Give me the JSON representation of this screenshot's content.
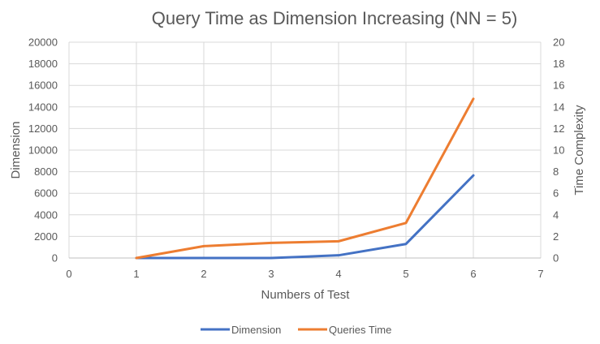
{
  "chart_data": {
    "type": "line",
    "title": "Query Time as Dimension Increasing (NN = 5)",
    "xlabel": "Numbers of Test",
    "ylabel_left": "Dimension",
    "ylabel_right": "Time Complexity",
    "xlim": [
      0,
      7
    ],
    "ylim_left": [
      0,
      20000
    ],
    "ylim_right": [
      0,
      20
    ],
    "x_ticks": [
      "0",
      "1",
      "2",
      "3",
      "4",
      "5",
      "6",
      "7"
    ],
    "y_left_ticks": [
      "0",
      "2000",
      "4000",
      "6000",
      "8000",
      "10000",
      "12000",
      "14000",
      "16000",
      "18000",
      "20000"
    ],
    "y_right_ticks": [
      "0",
      "2",
      "4",
      "6",
      "8",
      "10",
      "12",
      "14",
      "16",
      "18",
      "20"
    ],
    "grid": true,
    "legend_position": "bottom",
    "series": [
      {
        "name": "Dimension",
        "axis": "left",
        "color": "#4472C4",
        "x": [
          1,
          2,
          3,
          4,
          5,
          6
        ],
        "values": [
          0,
          0,
          0,
          250,
          1300,
          7650
        ]
      },
      {
        "name": "Queries Time",
        "axis": "right",
        "color": "#ED7D31",
        "x": [
          1,
          2,
          3,
          4,
          5,
          6
        ],
        "values": [
          0,
          1.1,
          1.4,
          1.55,
          3.25,
          14.75
        ]
      }
    ]
  }
}
